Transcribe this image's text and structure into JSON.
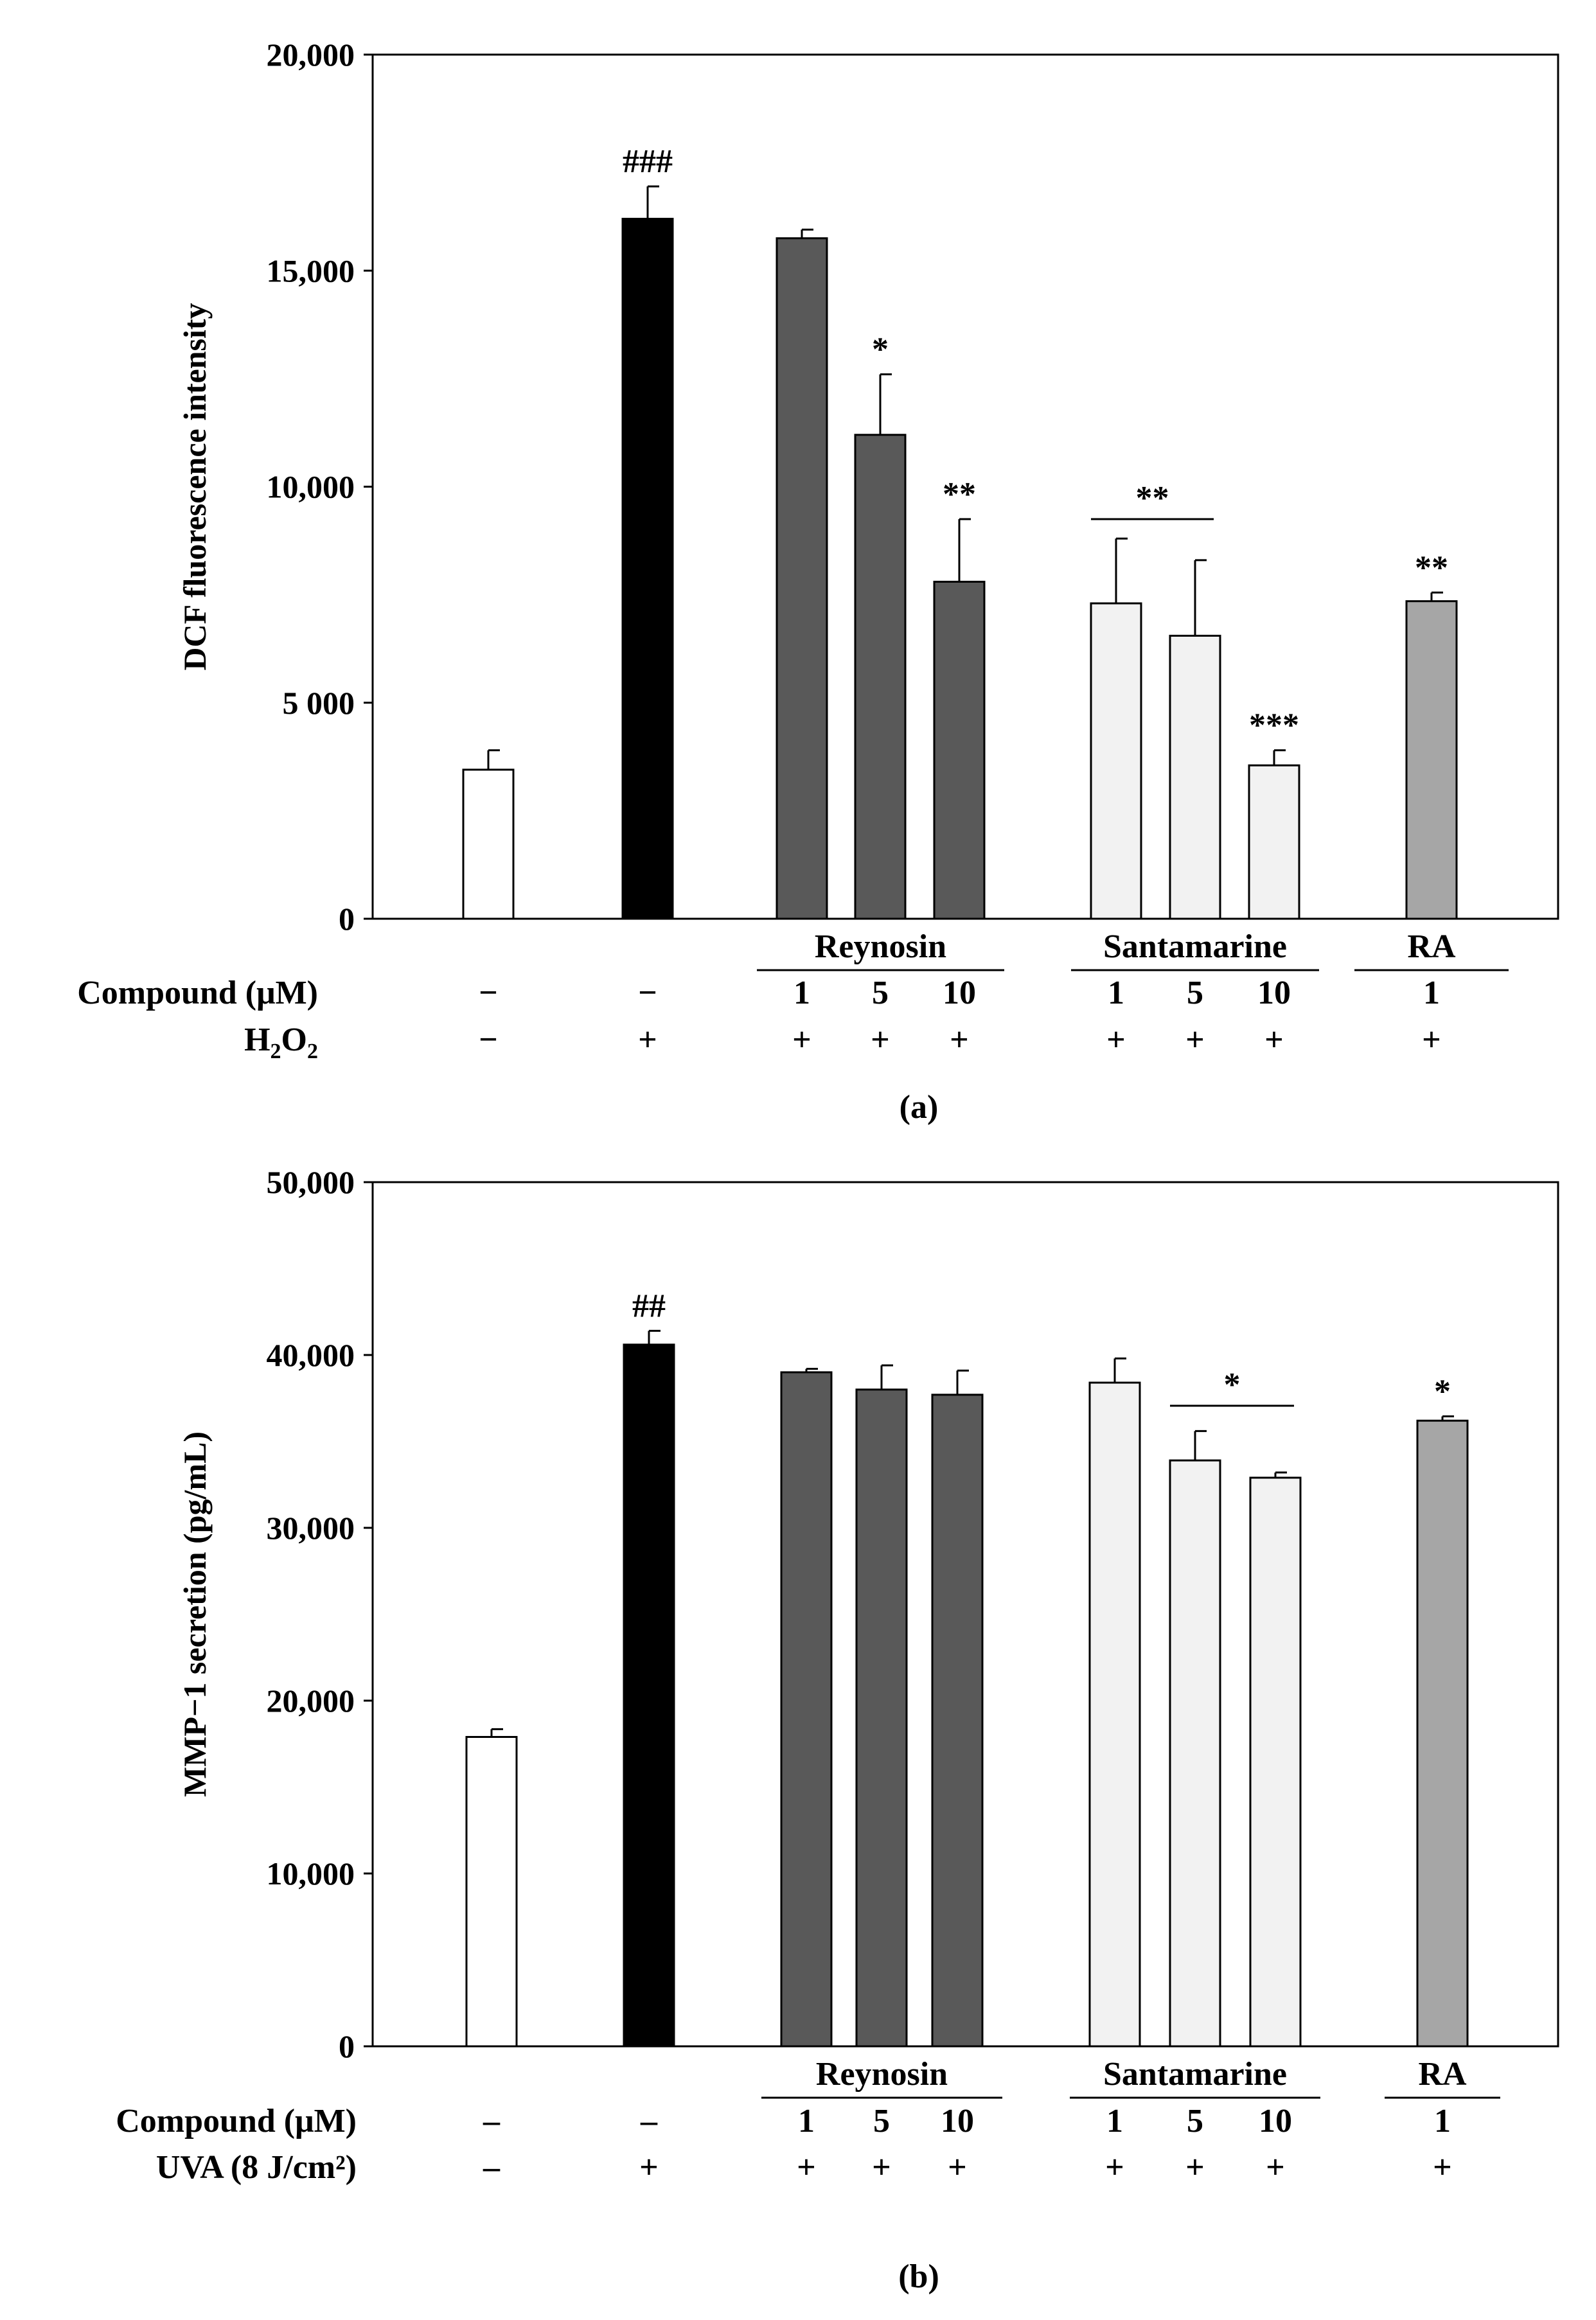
{
  "chart_data": [
    {
      "type": "bar",
      "panel_label": "(a)",
      "ylabel": "DCF fluorescence intensity",
      "ylim": [
        0,
        20000
      ],
      "yticks": [
        0,
        5000,
        10000,
        15000,
        20000
      ],
      "ytick_labels": [
        "0",
        "5 000",
        "10,000",
        "15,000",
        "20,000"
      ],
      "bars": [
        {
          "value": 3450,
          "error": 450,
          "fill": "#ffffff",
          "sig": ""
        },
        {
          "value": 16200,
          "error": 750,
          "fill": "#000000",
          "sig": "###"
        },
        {
          "value": 15750,
          "error": 200,
          "fill": "#595959",
          "sig": ""
        },
        {
          "value": 11200,
          "error": 1400,
          "fill": "#595959",
          "sig": "*"
        },
        {
          "value": 7800,
          "error": 1450,
          "fill": "#595959",
          "sig": "**"
        },
        {
          "value": 7300,
          "error": 1500,
          "fill": "#f2f2f2",
          "sig": ""
        },
        {
          "value": 6550,
          "error": 1750,
          "fill": "#f2f2f2",
          "sig": ""
        },
        {
          "value": 3550,
          "error": 350,
          "fill": "#f2f2f2",
          "sig": "***"
        },
        {
          "value": 7350,
          "error": 200,
          "fill": "#a6a6a6",
          "sig": "**"
        }
      ],
      "bracket_annotations": [
        {
          "from_bar": 5,
          "to_bar": 6,
          "label": "**"
        }
      ],
      "groups": [
        {
          "label": "Reynosin",
          "first_bar": 2,
          "last_bar": 4
        },
        {
          "label": "Santamarine",
          "first_bar": 5,
          "last_bar": 7
        },
        {
          "label": "RA",
          "first_bar": 8,
          "last_bar": 8
        }
      ],
      "rows": [
        {
          "label": "Compound (μM)",
          "values": [
            "−",
            "−",
            "1",
            "5",
            "10",
            "1",
            "5",
            "10",
            "1"
          ]
        },
        {
          "label": "H2O2",
          "label_base": "H",
          "label_sub1": "2",
          "label_mid": "O",
          "label_sub2": "2",
          "values": [
            "−",
            "+",
            "+",
            "+",
            "+",
            "+",
            "+",
            "+",
            "+"
          ]
        }
      ]
    },
    {
      "type": "bar",
      "panel_label": "(b)",
      "ylabel": "MMP−1 secretion (pg/mL)",
      "ylim": [
        0,
        50000
      ],
      "yticks": [
        0,
        10000,
        20000,
        30000,
        40000,
        50000
      ],
      "ytick_labels": [
        "0",
        "10,000",
        "20,000",
        "30,000",
        "40,000",
        "50,000"
      ],
      "bars": [
        {
          "value": 17900,
          "error": 450,
          "fill": "#ffffff",
          "sig": ""
        },
        {
          "value": 40600,
          "error": 800,
          "fill": "#000000",
          "sig": "##"
        },
        {
          "value": 39000,
          "error": 200,
          "fill": "#595959",
          "sig": ""
        },
        {
          "value": 38000,
          "error": 1400,
          "fill": "#595959",
          "sig": ""
        },
        {
          "value": 37700,
          "error": 1400,
          "fill": "#595959",
          "sig": ""
        },
        {
          "value": 38400,
          "error": 1400,
          "fill": "#f2f2f2",
          "sig": ""
        },
        {
          "value": 33900,
          "error": 1700,
          "fill": "#f2f2f2",
          "sig": ""
        },
        {
          "value": 32900,
          "error": 300,
          "fill": "#f2f2f2",
          "sig": ""
        },
        {
          "value": 36200,
          "error": 250,
          "fill": "#a6a6a6",
          "sig": "*"
        }
      ],
      "bracket_annotations": [
        {
          "from_bar": 6,
          "to_bar": 7,
          "label": "*"
        }
      ],
      "groups": [
        {
          "label": "Reynosin",
          "first_bar": 2,
          "last_bar": 4
        },
        {
          "label": "Santamarine",
          "first_bar": 5,
          "last_bar": 7
        },
        {
          "label": "RA",
          "first_bar": 8,
          "last_bar": 8
        }
      ],
      "rows": [
        {
          "label": "Compound (μM)",
          "values": [
            "–",
            "–",
            "1",
            "5",
            "10",
            "1",
            "5",
            "10",
            "1"
          ]
        },
        {
          "label": "UVA (8 J/cm²)",
          "values": [
            "–",
            "+",
            "+",
            "+",
            "+",
            "+",
            "+",
            "+",
            "+"
          ]
        }
      ]
    }
  ]
}
